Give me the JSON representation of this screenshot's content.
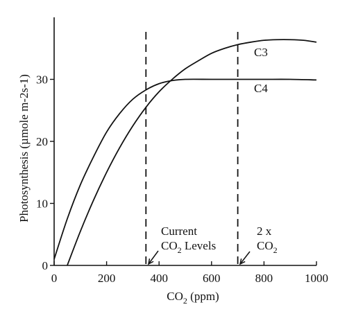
{
  "chart_data": {
    "type": "line",
    "title": "",
    "xlabel": {
      "main": "CO",
      "sub": "2",
      "rest": " (ppm)"
    },
    "ylabel": "Photosynthesis (µmole m-2s-1)",
    "xlim": [
      0,
      1000
    ],
    "ylim": [
      0,
      40
    ],
    "xticks": [
      0,
      200,
      400,
      600,
      800,
      1000
    ],
    "yticks": [
      0,
      10,
      20,
      30
    ],
    "grid": false,
    "series": [
      {
        "name": "C3",
        "x": [
          50,
          100,
          150,
          200,
          250,
          300,
          350,
          400,
          450,
          500,
          550,
          600,
          650,
          700,
          750,
          800,
          850,
          900,
          950,
          1000
        ],
        "y": [
          0,
          5.5,
          10.5,
          15,
          19,
          22.5,
          25.5,
          28,
          30,
          31.7,
          33,
          34.2,
          35,
          35.6,
          36,
          36.3,
          36.4,
          36.4,
          36.3,
          36
        ]
      },
      {
        "name": "C4",
        "x": [
          0,
          50,
          100,
          150,
          200,
          250,
          300,
          350,
          400,
          450,
          500,
          600,
          700,
          800,
          900,
          1000
        ],
        "y": [
          1,
          7.5,
          13,
          17.5,
          21.5,
          24.5,
          26.8,
          28.3,
          29.3,
          29.8,
          30,
          30,
          30,
          30,
          30,
          29.9
        ]
      }
    ],
    "reference_lines": [
      {
        "x": 350,
        "label_line1": "Current",
        "label_line2_main": "CO",
        "label_line2_sub": "2",
        "label_line2_rest": " Levels"
      },
      {
        "x": 700,
        "label_line1": "2 x",
        "label_line2_main": "CO",
        "label_line2_sub": "2",
        "label_line2_rest": ""
      }
    ]
  }
}
